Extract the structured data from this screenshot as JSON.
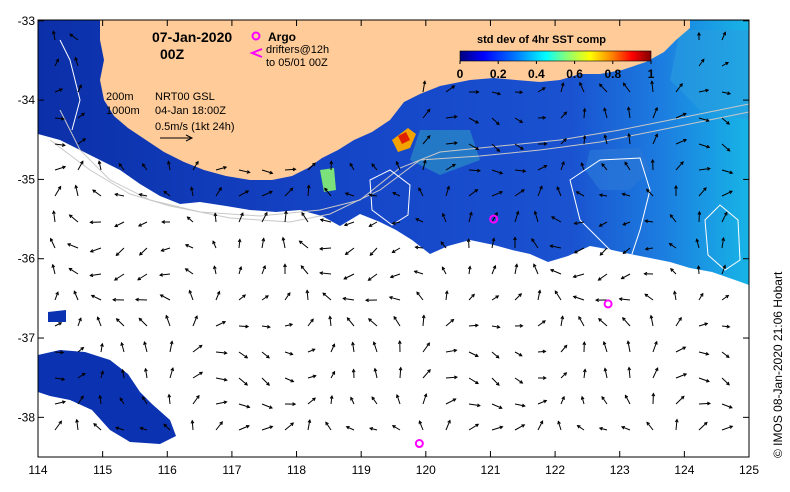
{
  "header": {
    "date": "07-Jan-2020",
    "time": "00Z",
    "argo_label": "Argo",
    "drifters_label": "drifters@12h",
    "drifters_sub": "to 05/01 00Z"
  },
  "legend": {
    "contour_200": "200m",
    "contour_1000": "1000m",
    "product": "NRT00 GSL",
    "product_time": "04-Jan 18:00Z",
    "vector_scale": "0.5m/s (1kt 24h)"
  },
  "colorbar": {
    "title": "std dev of 4hr SST comp",
    "ticks": [
      "0",
      "0.2",
      "0.4",
      "0.6",
      "0.8",
      "1"
    ],
    "colors": [
      "#00007f",
      "#0000ff",
      "#007fff",
      "#00ffff",
      "#7fff7f",
      "#ffff00",
      "#ff7f00",
      "#ff0000",
      "#7f0000"
    ]
  },
  "axes": {
    "x_ticks": [
      "114",
      "115",
      "116",
      "117",
      "118",
      "119",
      "120",
      "121",
      "122",
      "123",
      "124",
      "125"
    ],
    "y_ticks": [
      "-33",
      "-34",
      "-35",
      "-36",
      "-37",
      "-38"
    ]
  },
  "credit": "© IMOS 08-Jan-2020 21:06 Hobart",
  "colors": {
    "land": "#ffcc99",
    "argo": "#ff00ff",
    "ocean_deep": "#0a2ea8"
  },
  "argo_floats": [
    {
      "lon": 121.05,
      "lat": -35.5
    },
    {
      "lon": 122.82,
      "lat": -36.57
    },
    {
      "lon": 119.9,
      "lat": -38.33
    }
  ]
}
